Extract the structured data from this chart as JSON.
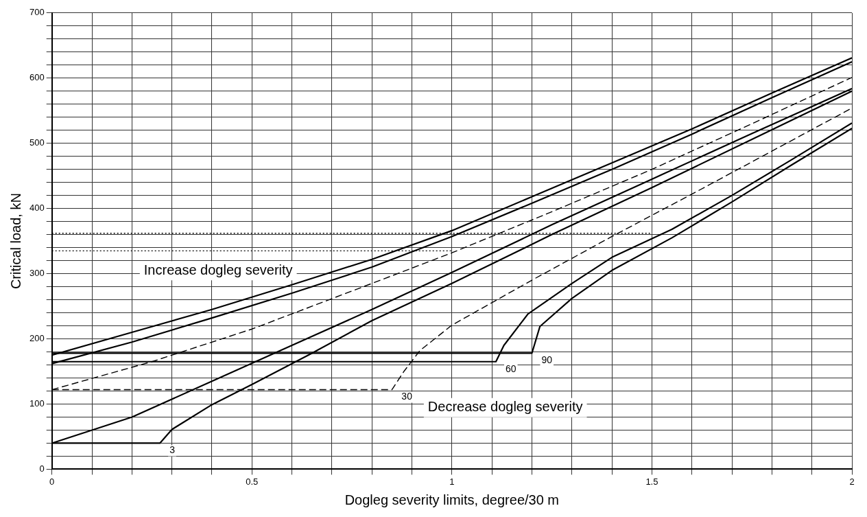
{
  "chart_data": {
    "type": "line",
    "xlabel": "Dogleg severity limits, degree/30 m",
    "ylabel": "Critical load, kN",
    "xlim": [
      0,
      2
    ],
    "ylim": [
      0,
      700
    ],
    "xticks": [
      0,
      {
        "value": 0.1,
        "label": null
      },
      {
        "value": 0.2,
        "label": null
      },
      {
        "value": 0.3,
        "label": null
      },
      {
        "value": 0.4,
        "label": null
      },
      0.5,
      {
        "value": 0.6,
        "label": null
      },
      {
        "value": 0.7,
        "label": null
      },
      {
        "value": 0.8,
        "label": null
      },
      {
        "value": 0.9,
        "label": null
      },
      1,
      {
        "value": 1.1,
        "label": null
      },
      {
        "value": 1.2,
        "label": null
      },
      {
        "value": 1.3,
        "label": null
      },
      {
        "value": 1.4,
        "label": null
      },
      1.5,
      {
        "value": 1.6,
        "label": null
      },
      {
        "value": 1.7,
        "label": null
      },
      {
        "value": 1.8,
        "label": null
      },
      {
        "value": 1.9,
        "label": null
      },
      2
    ],
    "yticks": [
      0,
      {
        "value": 20,
        "label": null
      },
      {
        "value": 40,
        "label": null
      },
      {
        "value": 60,
        "label": null
      },
      {
        "value": 80,
        "label": null
      },
      100,
      {
        "value": 120,
        "label": null
      },
      {
        "value": 140,
        "label": null
      },
      {
        "value": 160,
        "label": null
      },
      {
        "value": 180,
        "label": null
      },
      200,
      {
        "value": 220,
        "label": null
      },
      {
        "value": 240,
        "label": null
      },
      {
        "value": 260,
        "label": null
      },
      {
        "value": 280,
        "label": null
      },
      300,
      {
        "value": 320,
        "label": null
      },
      {
        "value": 340,
        "label": null
      },
      {
        "value": 360,
        "label": null
      },
      {
        "value": 380,
        "label": null
      },
      400,
      {
        "value": 420,
        "label": null
      },
      {
        "value": 440,
        "label": null
      },
      {
        "value": 460,
        "label": null
      },
      {
        "value": 480,
        "label": null
      },
      500,
      {
        "value": 520,
        "label": null
      },
      {
        "value": 540,
        "label": null
      },
      {
        "value": 560,
        "label": null
      },
      {
        "value": 580,
        "label": null
      },
      600,
      {
        "value": 620,
        "label": null
      },
      {
        "value": 640,
        "label": null
      },
      {
        "value": 660,
        "label": null
      },
      {
        "value": 680,
        "label": null
      },
      700
    ],
    "grid": true,
    "legend": false,
    "marker": "none",
    "series": [
      {
        "color": "#000000",
        "line_style": "solid",
        "x": [
          0,
          0.2,
          0.4,
          0.6,
          0.8,
          1,
          1.2,
          1.4,
          1.6,
          1.8,
          2
        ],
        "values": [
          175,
          210,
          245,
          283,
          322,
          366,
          418,
          470,
          522,
          577,
          631
        ]
      },
      {
        "color": "#000000",
        "line_style": "solid",
        "x": [
          0,
          0.2,
          0.4,
          0.6,
          0.8,
          1,
          1.2,
          1.4,
          1.6,
          1.8,
          2
        ],
        "values": [
          162,
          195,
          232,
          270,
          310,
          357,
          408,
          460,
          514,
          570,
          625
        ]
      },
      {
        "color": "#000000",
        "line_style": "dashed",
        "x": [
          0,
          0.25,
          0.5,
          0.8,
          1,
          1.25,
          1.5,
          1.75,
          2
        ],
        "values": [
          122,
          165,
          215,
          285,
          332,
          395,
          460,
          530,
          601
        ]
      },
      {
        "color": "#000000",
        "line_style": "solid",
        "x": [
          0,
          0.2,
          0.4,
          0.6,
          0.8,
          1,
          1.25,
          1.5,
          1.75,
          2
        ],
        "values": [
          40,
          80,
          135,
          190,
          245,
          302,
          375,
          445,
          515,
          584
        ]
      },
      {
        "color": "#000000",
        "line_style": "solid",
        "x": [
          0,
          0.27,
          0.3,
          0.4,
          0.5,
          0.65,
          0.8,
          1,
          1.25,
          1.5,
          1.75,
          2
        ],
        "values": [
          40,
          40,
          61,
          99,
          130,
          178,
          228,
          285,
          360,
          432,
          506,
          580
        ]
      },
      {
        "color": "#000000",
        "line_style": "dashed",
        "x": [
          0,
          0.85,
          0.88,
          0.92,
          1,
          1.2,
          1.4,
          1.6,
          1.8,
          2
        ],
        "values": [
          122,
          122,
          150,
          182,
          221,
          290,
          357,
          422,
          488,
          554
        ]
      },
      {
        "color": "#000000",
        "line_style": "solid",
        "x": [
          0,
          1.11,
          1.13,
          1.19,
          1.3,
          1.4,
          1.55,
          1.7,
          1.85,
          2
        ],
        "values": [
          165,
          165,
          190,
          238,
          285,
          325,
          368,
          420,
          475,
          531
        ]
      },
      {
        "color": "#000000",
        "line_style": "solid",
        "x": [
          0,
          1.2,
          1.22,
          1.3,
          1.4,
          1.55,
          1.7,
          1.85,
          2
        ],
        "values": [
          178,
          178,
          219,
          262,
          305,
          355,
          410,
          467,
          523
        ]
      },
      {
        "color": "#000000",
        "line_style": "dotted",
        "x": [
          0,
          1.5
        ],
        "values": [
          362,
          362
        ]
      },
      {
        "color": "#000000",
        "line_style": "dotted",
        "x": [
          0,
          1.0
        ],
        "values": [
          335,
          335
        ]
      }
    ],
    "annotations": [
      "Increase dogleg severity",
      "Decrease dogleg severity",
      {
        "text": "3",
        "x": 0.27,
        "y": 40
      },
      {
        "text": "30",
        "x": 0.85,
        "y": 122
      },
      {
        "text": "60",
        "x": 1.11,
        "y": 165
      },
      {
        "text": "90",
        "x": 1.2,
        "y": 178
      }
    ]
  }
}
